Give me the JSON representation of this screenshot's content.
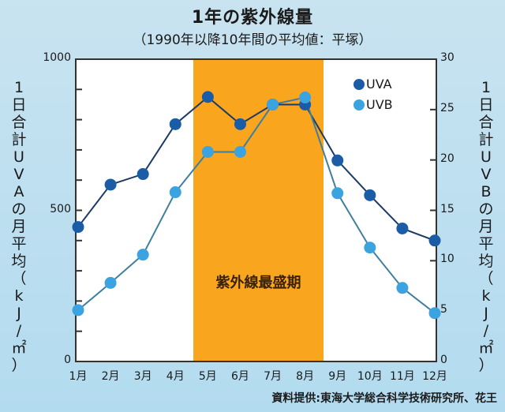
{
  "header": {
    "title": "1年の紫外線量",
    "subtitle": "（1990年以降10年間の平均値：平塚）"
  },
  "axes": {
    "left_label_chars": [
      "1",
      "日",
      "合",
      "計",
      "U",
      "V",
      "A",
      "の",
      "月",
      "平",
      "均",
      "（",
      "k",
      "J",
      "/",
      "㎡",
      "）"
    ],
    "right_label_chars": [
      "1",
      "日",
      "合",
      "計",
      "U",
      "V",
      "B",
      "の",
      "月",
      "平",
      "均",
      "（",
      "k",
      "J",
      "/",
      "㎡",
      "）"
    ],
    "left_ticks": [
      "1000",
      "500",
      "0"
    ],
    "right_ticks": [
      "30",
      "25",
      "20",
      "15",
      "10",
      "5",
      "0"
    ]
  },
  "legend": {
    "uva": "UVA",
    "uvb": "UVB"
  },
  "band_label": "紫外線最盛期",
  "source": "資料提供:東海大学総合科学技術研究所、花王",
  "colors": {
    "uva": "#1a5ca6",
    "uvb": "#3ba3df",
    "band": "#f9a51e",
    "plot_bg": "#ffffff"
  },
  "chart_data": {
    "type": "line",
    "title": "1年の紫外線量",
    "subtitle": "（1990年以降10年間の平均値：平塚）",
    "categories": [
      "1月",
      "2月",
      "3月",
      "4月",
      "5月",
      "6月",
      "7月",
      "8月",
      "9月",
      "10月",
      "11月",
      "12月"
    ],
    "series": [
      {
        "name": "UVA",
        "axis": "left",
        "values": [
          445,
          585,
          620,
          785,
          875,
          785,
          850,
          850,
          665,
          550,
          440,
          400
        ]
      },
      {
        "name": "UVB",
        "axis": "right",
        "values": [
          5.1,
          7.8,
          10.6,
          16.8,
          20.8,
          20.8,
          25.5,
          26.2,
          16.7,
          11.3,
          7.3,
          4.8
        ]
      }
    ],
    "xlabel": "",
    "ylabel_left": "1日合計UVAの月平均（kJ/㎡）",
    "ylabel_right": "1日合計UVBの月平均（kJ/㎡）",
    "ylim_left": [
      0,
      1000
    ],
    "ylim_right": [
      0,
      30
    ],
    "left_major_ticks": [
      0,
      500,
      1000
    ],
    "left_minor_step": 100,
    "right_ticks": [
      0,
      5,
      10,
      15,
      20,
      25,
      30
    ],
    "highlight_band": {
      "from": "4月末",
      "to": "8月末",
      "label": "紫外線最盛期"
    },
    "legend_position": "top-right inside plot",
    "grid": false,
    "source": "資料提供:東海大学総合科学技術研究所、花王"
  }
}
